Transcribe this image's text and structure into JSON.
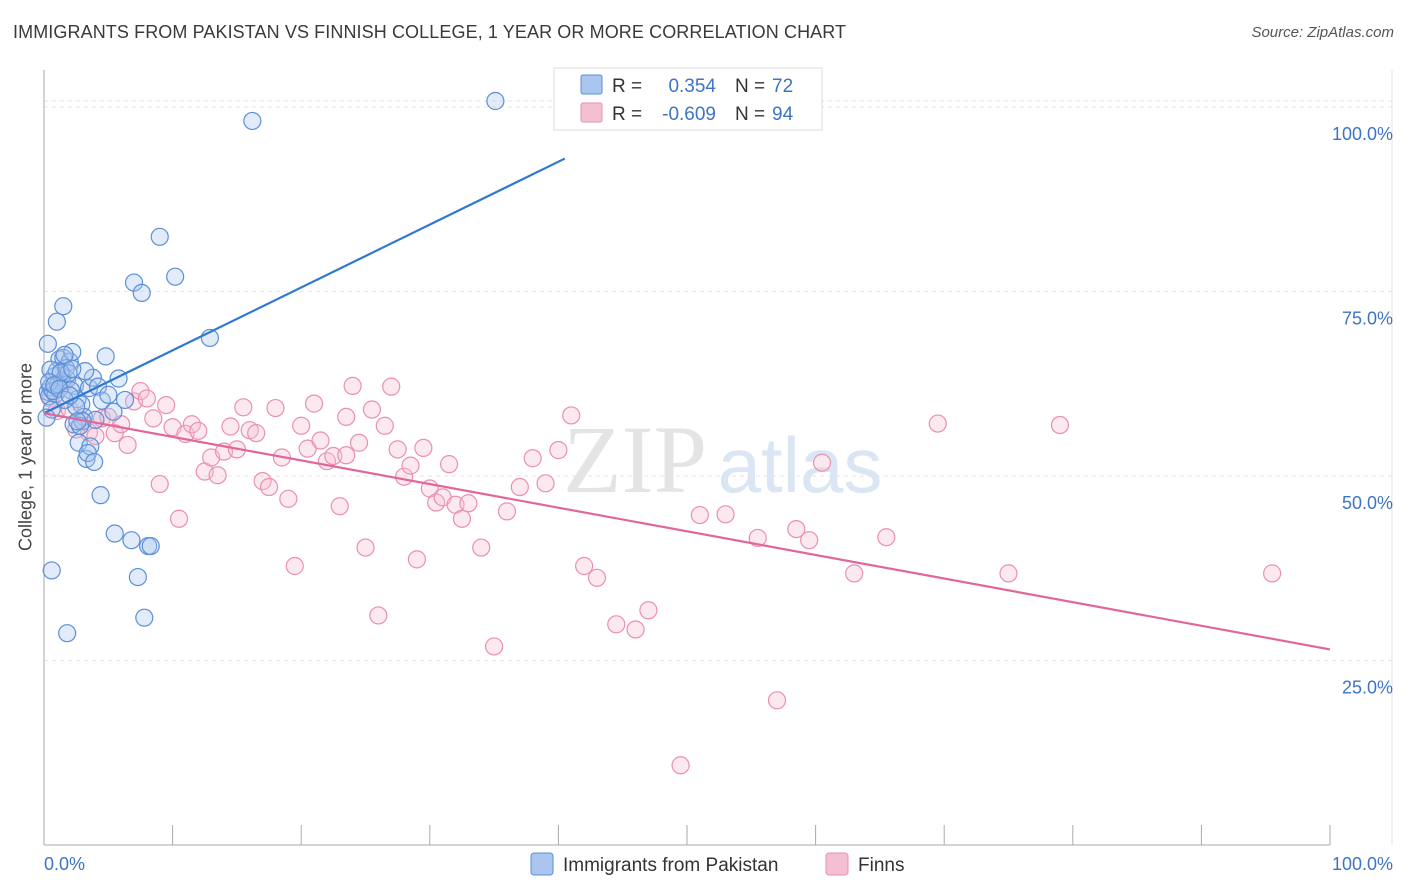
{
  "header": {
    "title": "IMMIGRANTS FROM PAKISTAN VS FINNISH COLLEGE, 1 YEAR OR MORE CORRELATION CHART",
    "source": "Source: ZipAtlas.com"
  },
  "watermark": {
    "zip": "ZIP",
    "atlas": "atlas"
  },
  "colors": {
    "blue": "#5b8fd9",
    "blue_fill": "#aac6ef",
    "blue_line": "#2f78d0",
    "pink": "#ea8fb0",
    "pink_fill": "#f5bfd3",
    "pink_line": "#e0679a",
    "tick_text": "#3d74c4",
    "grid": "#e3e3e3"
  },
  "legend_box": {
    "row1": {
      "r_label": "R =",
      "r_value": "0.354",
      "n_label": "N =",
      "n_value": "72"
    },
    "row2": {
      "r_label": "R =",
      "r_value": "-0.609",
      "n_label": "N =",
      "n_value": "94"
    }
  },
  "chart_data": {
    "type": "scatter",
    "title": "IMMIGRANTS FROM PAKISTAN VS FINNISH COLLEGE, 1 YEAR OR MORE CORRELATION CHART",
    "xlabel": "",
    "ylabel": "College, 1 year or more",
    "xlim": [
      0,
      100
    ],
    "ylim": [
      0,
      105
    ],
    "x_tick_labels": [
      "0.0%",
      "100.0%"
    ],
    "y_ticks": [
      25,
      50,
      75,
      100
    ],
    "y_tick_labels": [
      "25.0%",
      "50.0%",
      "75.0%",
      "100.0%"
    ],
    "grid": true,
    "legend_position": "bottom",
    "series": [
      {
        "name": "Immigrants from Pakistan",
        "color": "#5b8fd9",
        "r": 0.354,
        "n": 72,
        "trend": {
          "x": [
            0,
            40.5
          ],
          "y": [
            58.5,
            93.0
          ]
        },
        "x": [
          0.3,
          0.5,
          0.8,
          0.4,
          1.0,
          1.2,
          1.5,
          1.8,
          2.0,
          2.2,
          0.6,
          0.9,
          1.4,
          1.7,
          2.4,
          2.6,
          2.9,
          3.1,
          3.5,
          3.8,
          4.2,
          4.5,
          5.0,
          5.4,
          5.8,
          6.3,
          0.2,
          0.7,
          1.1,
          1.6,
          1.9,
          2.3,
          2.7,
          3.3,
          3.6,
          4.0,
          0.5,
          1.3,
          2.1,
          2.5,
          3.0,
          3.4,
          0.4,
          0.8,
          1.2,
          1.6,
          2.0,
          2.8,
          3.2,
          4.8,
          7.0,
          7.6,
          9.0,
          10.2,
          12.9,
          16.2,
          35.1,
          0.3,
          1.0,
          1.5,
          2.2,
          2.6,
          3.9,
          4.4,
          5.5,
          6.8,
          7.3,
          7.8,
          8.1,
          8.3,
          0.6,
          1.8
        ],
        "y": [
          61.4,
          62.0,
          63.5,
          60.8,
          64.2,
          65.8,
          66.0,
          63.1,
          65.5,
          66.8,
          59.0,
          61.1,
          62.8,
          64.6,
          62.2,
          60.4,
          59.7,
          58.0,
          61.9,
          63.3,
          62.1,
          60.2,
          61.0,
          58.7,
          63.2,
          60.3,
          57.9,
          61.5,
          62.4,
          66.4,
          63.9,
          57.0,
          54.5,
          52.3,
          54.0,
          57.6,
          64.4,
          64.0,
          61.6,
          59.4,
          57.4,
          53.1,
          62.7,
          62.3,
          61.8,
          60.3,
          60.9,
          56.8,
          64.2,
          66.2,
          76.2,
          74.8,
          82.4,
          77.0,
          68.7,
          98.1,
          100.8,
          67.9,
          70.9,
          73.0,
          64.5,
          57.4,
          51.9,
          47.4,
          42.2,
          41.3,
          36.3,
          30.8,
          40.5,
          40.5,
          37.2,
          28.7
        ]
      },
      {
        "name": "Finns",
        "color": "#ea8fb0",
        "r": -0.609,
        "n": 94,
        "trend": {
          "x": [
            0,
            100
          ],
          "y": [
            58.5,
            26.5
          ]
        },
        "x": [
          0.5,
          1.0,
          1.5,
          2.0,
          2.5,
          3.0,
          3.5,
          4.0,
          4.5,
          5.0,
          5.5,
          6.0,
          6.5,
          7.0,
          7.5,
          8.0,
          8.5,
          9.0,
          9.5,
          10.0,
          10.5,
          11.0,
          11.5,
          12.0,
          12.5,
          13.0,
          13.5,
          14.0,
          14.5,
          15.0,
          15.5,
          16.0,
          16.5,
          17.0,
          17.5,
          18.0,
          18.5,
          19.0,
          19.5,
          20.0,
          20.5,
          21.0,
          21.5,
          22.0,
          22.5,
          23.0,
          23.5,
          24.0,
          24.5,
          25.0,
          25.5,
          26.0,
          26.5,
          27.0,
          27.5,
          28.0,
          28.5,
          29.0,
          29.5,
          30.0,
          30.5,
          31.0,
          31.5,
          32.0,
          32.5,
          33.0,
          34.0,
          35.0,
          36.0,
          37.0,
          38.0,
          39.0,
          40.0,
          41.0,
          42.0,
          43.0,
          44.5,
          46.0,
          47.0,
          49.5,
          51.0,
          53.0,
          55.5,
          57.0,
          58.5,
          59.5,
          60.5,
          63.0,
          65.5,
          69.5,
          75.0,
          79.0,
          95.5,
          23.5
        ],
        "y": [
          60.5,
          58.8,
          62.5,
          59.0,
          56.3,
          57.5,
          55.9,
          55.4,
          57.8,
          58.0,
          55.8,
          57.0,
          54.2,
          60.1,
          61.5,
          60.5,
          57.8,
          48.9,
          59.6,
          56.6,
          44.2,
          55.7,
          57.0,
          56.1,
          50.6,
          52.5,
          50.1,
          53.3,
          56.7,
          53.6,
          59.3,
          56.2,
          55.8,
          49.3,
          48.5,
          59.2,
          52.5,
          46.9,
          37.8,
          56.8,
          53.7,
          59.8,
          54.8,
          52.0,
          52.7,
          45.9,
          52.8,
          62.2,
          54.5,
          40.3,
          59.0,
          31.1,
          56.8,
          62.1,
          53.6,
          49.9,
          51.4,
          38.7,
          53.8,
          48.3,
          46.4,
          47.1,
          51.6,
          46.1,
          44.2,
          46.3,
          40.3,
          26.9,
          45.2,
          48.5,
          52.4,
          49.0,
          53.5,
          58.2,
          37.8,
          36.2,
          29.9,
          29.2,
          31.8,
          10.8,
          44.7,
          44.8,
          41.6,
          19.6,
          42.8,
          41.3,
          51.8,
          36.8,
          41.7,
          57.1,
          36.8,
          56.9,
          36.8,
          58.0
        ]
      }
    ]
  },
  "bottom_legend": {
    "series1": "Immigrants from Pakistan",
    "series2": "Finns"
  }
}
